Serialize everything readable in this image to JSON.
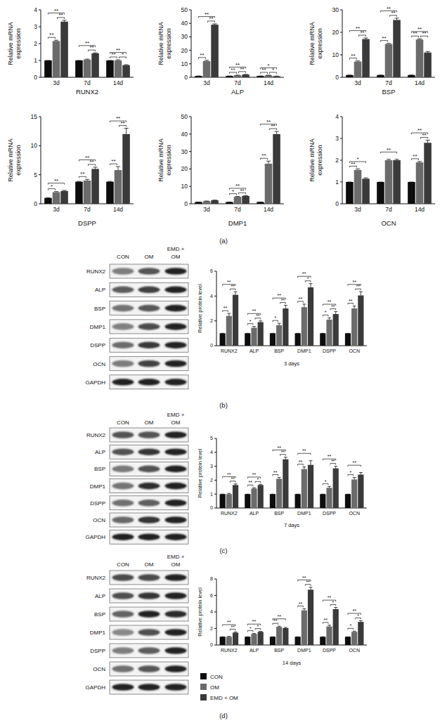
{
  "chart_data": [
    {
      "type": "bar",
      "categories": [
        "3d",
        "7d",
        "14d"
      ],
      "xlabel": "RUNX2",
      "ylabel": "Relative mRNA expression",
      "ylim": [
        0,
        4
      ],
      "yticks": [
        0,
        1,
        2,
        3,
        4
      ],
      "series": [
        {
          "name": "CON",
          "color": "#0d0d0d",
          "values": [
            1,
            1,
            1
          ],
          "errors": [
            0,
            0,
            0
          ]
        },
        {
          "name": "OM",
          "color": "#6b6b6b",
          "values": [
            2.15,
            1.05,
            1.0
          ],
          "errors": [
            0.05,
            0.03,
            0.04
          ]
        },
        {
          "name": "EMD + OM",
          "color": "#3a3a3a",
          "values": [
            3.3,
            1.42,
            0.72
          ],
          "errors": [
            0.08,
            0.03,
            0.03
          ]
        }
      ],
      "significance": [
        [
          "**",
          "**",
          "**"
        ],
        [
          null,
          "**",
          "**"
        ],
        [
          "**",
          "*",
          "**"
        ]
      ]
    },
    {
      "type": "bar",
      "categories": [
        "3d",
        "7d",
        "14d"
      ],
      "xlabel": "ALP",
      "ylabel": "Relative mRNA expression",
      "ylim": [
        0,
        50
      ],
      "yticks": [
        0,
        10,
        20,
        30,
        40,
        50
      ],
      "series": [
        {
          "name": "CON",
          "color": "#0d0d0d",
          "values": [
            1,
            1,
            1
          ],
          "errors": [
            0,
            0,
            0
          ]
        },
        {
          "name": "OM",
          "color": "#6b6b6b",
          "values": [
            12,
            1.5,
            1.5
          ],
          "errors": [
            0.6,
            0.1,
            0.1
          ]
        },
        {
          "name": "EMD + OM",
          "color": "#3a3a3a",
          "values": [
            39,
            2.0,
            0.8
          ],
          "errors": [
            0.6,
            0.15,
            0.1
          ]
        }
      ],
      "significance": [
        [
          "**",
          "**",
          "**"
        ],
        [
          "**",
          "**",
          "**"
        ],
        [
          "**",
          "*",
          "*"
        ]
      ]
    },
    {
      "type": "bar",
      "categories": [
        "3d",
        "7d",
        "14d"
      ],
      "xlabel": "BSP",
      "ylabel": "Relative mRNA expression",
      "ylim": [
        0,
        30
      ],
      "yticks": [
        0,
        10,
        20,
        30
      ],
      "series": [
        {
          "name": "CON",
          "color": "#0d0d0d",
          "values": [
            1,
            1,
            1
          ],
          "errors": [
            0,
            0,
            0
          ]
        },
        {
          "name": "OM",
          "color": "#6b6b6b",
          "values": [
            7,
            14.8,
            16.8
          ],
          "errors": [
            0.3,
            0.3,
            0.3
          ]
        },
        {
          "name": "EMD + OM",
          "color": "#3a3a3a",
          "values": [
            17,
            25.5,
            11
          ],
          "errors": [
            0.5,
            0.8,
            0.4
          ]
        }
      ],
      "significance": [
        [
          "**",
          "**",
          "**"
        ],
        [
          "**",
          "**",
          "**"
        ],
        [
          "**",
          "**",
          "**"
        ]
      ]
    },
    {
      "type": "bar",
      "categories": [
        "3d",
        "7d",
        "14d"
      ],
      "xlabel": "DSPP",
      "ylabel": "Relative mRNA expression",
      "ylim": [
        0,
        15
      ],
      "yticks": [
        0,
        5,
        10,
        15
      ],
      "series": [
        {
          "name": "CON",
          "color": "#0d0d0d",
          "values": [
            1,
            3.8,
            3.8
          ],
          "errors": [
            0.05,
            0.05,
            0.05
          ]
        },
        {
          "name": "OM",
          "color": "#6b6b6b",
          "values": [
            2.0,
            4.0,
            5.8
          ],
          "errors": [
            0.1,
            0.2,
            0.6
          ]
        },
        {
          "name": "EMD + OM",
          "color": "#3a3a3a",
          "values": [
            2.2,
            6.0,
            12.0
          ],
          "errors": [
            0.1,
            0.3,
            1.0
          ]
        }
      ],
      "significance": [
        [
          "*",
          null,
          "**"
        ],
        [
          "**",
          "**",
          "**"
        ],
        [
          "**",
          "**",
          "**"
        ]
      ]
    },
    {
      "type": "bar",
      "categories": [
        "3d",
        "7d",
        "14d"
      ],
      "xlabel": "DMP1",
      "ylabel": "Relative mRNA expression",
      "ylim": [
        0,
        50
      ],
      "yticks": [
        0,
        10,
        20,
        30,
        40,
        50
      ],
      "series": [
        {
          "name": "CON",
          "color": "#0d0d0d",
          "values": [
            1,
            1,
            1
          ],
          "errors": [
            0,
            0,
            0
          ]
        },
        {
          "name": "OM",
          "color": "#6b6b6b",
          "values": [
            1.5,
            4.0,
            23
          ],
          "errors": [
            0.1,
            0.2,
            1.5
          ]
        },
        {
          "name": "EMD + OM",
          "color": "#3a3a3a",
          "values": [
            2.0,
            4.5,
            40
          ],
          "errors": [
            0.1,
            0.2,
            1.5
          ]
        }
      ],
      "significance": [
        [
          null,
          null,
          null
        ],
        [
          "*",
          "**",
          "**"
        ],
        [
          "**",
          "**",
          "**"
        ]
      ]
    },
    {
      "type": "bar",
      "categories": [
        "3d",
        "7d",
        "14d"
      ],
      "xlabel": "OCN",
      "ylabel": "Relative mRNA expression",
      "ylim": [
        0,
        4
      ],
      "yticks": [
        0,
        1,
        2,
        3,
        4
      ],
      "series": [
        {
          "name": "CON",
          "color": "#0d0d0d",
          "values": [
            1,
            1,
            1
          ],
          "errors": [
            0,
            0,
            0
          ]
        },
        {
          "name": "OM",
          "color": "#6b6b6b",
          "values": [
            1.55,
            2.0,
            1.9
          ],
          "errors": [
            0.05,
            0.04,
            0.04
          ]
        },
        {
          "name": "EMD + OM",
          "color": "#3a3a3a",
          "values": [
            1.15,
            2.0,
            2.8
          ],
          "errors": [
            0.04,
            0.04,
            0.12
          ]
        }
      ],
      "significance": [
        [
          "**",
          null,
          "*"
        ],
        [
          null,
          null,
          "**"
        ],
        [
          "**",
          "**",
          "**"
        ]
      ]
    },
    {
      "type": "bar",
      "categories": [
        "RUNX2",
        "ALP",
        "BSP",
        "DMP1",
        "DSPP",
        "OCN"
      ],
      "xlabel": "3 days",
      "ylabel": "Relative protein level",
      "ylim": [
        0,
        6
      ],
      "yticks": [
        0,
        2,
        4,
        6
      ],
      "series": [
        {
          "name": "CON",
          "color": "#0d0d0d",
          "values": [
            1,
            1,
            1,
            1,
            1,
            1
          ],
          "errors": [
            0,
            0,
            0,
            0,
            0,
            0
          ]
        },
        {
          "name": "OM",
          "color": "#6b6b6b",
          "values": [
            2.4,
            1.45,
            1.65,
            3.1,
            2.1,
            3.0
          ],
          "errors": [
            0.2,
            0.1,
            0.15,
            0.25,
            0.15,
            0.2
          ]
        },
        {
          "name": "EMD + OM",
          "color": "#3a3a3a",
          "values": [
            4.1,
            1.9,
            3.0,
            4.7,
            2.55,
            4.05
          ],
          "errors": [
            0.25,
            0.1,
            0.25,
            0.3,
            0.2,
            0.3
          ]
        }
      ],
      "significance": [
        [
          "**",
          "**",
          "**"
        ],
        [
          "*",
          "**",
          "**"
        ],
        [
          "*",
          "**",
          "**"
        ],
        [
          "**",
          "*",
          "**"
        ],
        [
          "*",
          "**",
          "**"
        ],
        [
          "**",
          "**",
          "**"
        ]
      ]
    },
    {
      "type": "bar",
      "categories": [
        "RUNX2",
        "ALP",
        "BSP",
        "DMP1",
        "DSPP",
        "OCN"
      ],
      "xlabel": "7 days",
      "ylabel": "Relative protein level",
      "ylim": [
        0,
        5
      ],
      "yticks": [
        0,
        1,
        2,
        3,
        4,
        5
      ],
      "series": [
        {
          "name": "CON",
          "color": "#0d0d0d",
          "values": [
            1,
            1,
            1,
            1,
            1,
            1
          ],
          "errors": [
            0,
            0,
            0,
            0,
            0,
            0
          ]
        },
        {
          "name": "OM",
          "color": "#6b6b6b",
          "values": [
            1.0,
            1.4,
            2.1,
            2.8,
            1.45,
            2.05
          ],
          "errors": [
            0.05,
            0.05,
            0.1,
            0.15,
            0.1,
            0.15
          ]
        },
        {
          "name": "EMD + OM",
          "color": "#3a3a3a",
          "values": [
            1.65,
            1.65,
            3.5,
            3.1,
            2.85,
            2.4
          ],
          "errors": [
            0.08,
            0.05,
            0.15,
            0.3,
            0.15,
            0.15
          ]
        }
      ],
      "significance": [
        [
          null,
          "**",
          "**"
        ],
        [
          "**",
          "*",
          "**"
        ],
        [
          "**",
          "**",
          "**"
        ],
        [
          "**",
          null,
          "**"
        ],
        [
          "*",
          "**",
          "**"
        ],
        [
          "*",
          null,
          "**"
        ]
      ]
    },
    {
      "type": "bar",
      "categories": [
        "RUNX2",
        "ALP",
        "BSP",
        "DMP1",
        "DSPP",
        "OCN"
      ],
      "xlabel": "14 days",
      "ylabel": "Relative protein level",
      "ylim": [
        0,
        8
      ],
      "yticks": [
        0,
        2,
        4,
        6,
        8
      ],
      "legend": "bottom-left",
      "series": [
        {
          "name": "CON",
          "color": "#0d0d0d",
          "values": [
            1,
            1,
            1,
            1,
            1,
            1
          ],
          "errors": [
            0,
            0,
            0,
            0,
            0,
            0
          ]
        },
        {
          "name": "OM",
          "color": "#6b6b6b",
          "values": [
            1.0,
            1.35,
            2.2,
            4.2,
            2.25,
            1.6
          ],
          "errors": [
            0.05,
            0.05,
            0.08,
            0.2,
            0.15,
            0.08
          ]
        },
        {
          "name": "EMD + OM",
          "color": "#3a3a3a",
          "values": [
            1.5,
            1.6,
            2.05,
            6.7,
            4.35,
            2.8
          ],
          "errors": [
            0.08,
            0.05,
            0.08,
            0.3,
            0.2,
            0.15
          ]
        }
      ],
      "significance": [
        [
          null,
          "**",
          "**"
        ],
        [
          "*",
          "*",
          "**"
        ],
        [
          "**",
          null,
          "**"
        ],
        [
          "**",
          "**",
          "**"
        ],
        [
          "**",
          "*",
          "**"
        ],
        [
          "*",
          "*",
          "**"
        ]
      ]
    }
  ],
  "figure": {
    "panels": [
      "(a)",
      "(b)",
      "(c)",
      "(d)"
    ],
    "blots": [
      {
        "columns": [
          "CON",
          "OM",
          "EMD + OM"
        ],
        "rows": [
          "RUNX2",
          "ALP",
          "BSP",
          "DMP1",
          "DSPP",
          "OCN",
          "GAPDH"
        ]
      },
      {
        "columns": [
          "CON",
          "OM",
          "EMD + OM"
        ],
        "rows": [
          "RUNX2",
          "ALP",
          "BSP",
          "DMP1",
          "DSPP",
          "OCN",
          "GAPDH"
        ]
      },
      {
        "columns": [
          "CON",
          "OM",
          "EMD + OM"
        ],
        "rows": [
          "RUNX2",
          "ALP",
          "BSP",
          "DMP1",
          "DSPP",
          "OCN",
          "GAPDH"
        ]
      }
    ]
  }
}
